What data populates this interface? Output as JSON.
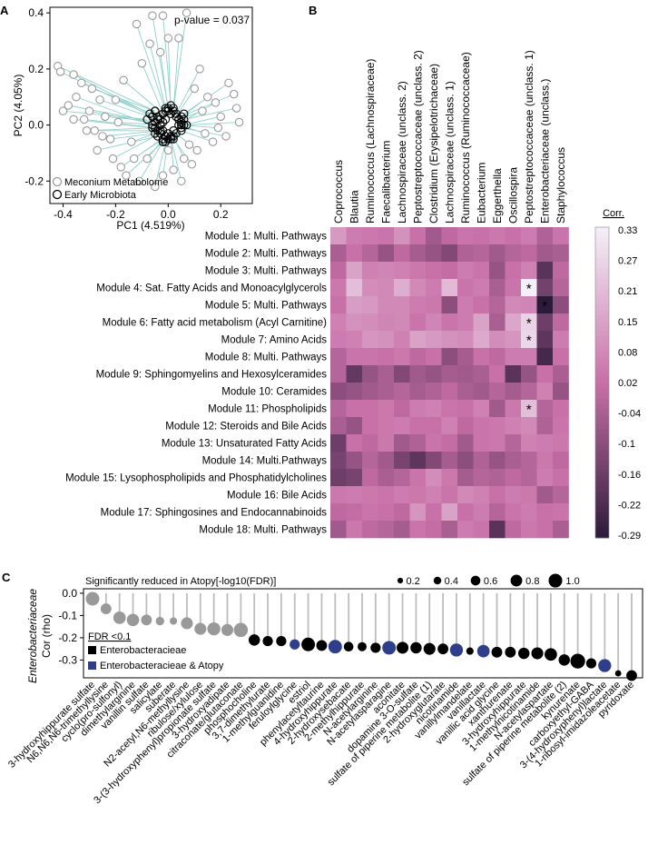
{
  "chart_data": [
    {
      "panel": "A",
      "type": "scatter",
      "annotation": "p-value = 0.037",
      "xlabel": "PC1 (4.519%)",
      "ylabel": "PC2 (4.05%)",
      "xlim": [
        -0.45,
        0.32
      ],
      "ylim": [
        -0.28,
        0.42
      ],
      "xticks": [
        "-0.4",
        "-0.2",
        "0.0",
        "0.2"
      ],
      "yticks": [
        "0.4",
        "0.2",
        "0.0",
        "-0.2"
      ],
      "xtick_values": [
        -0.4,
        -0.2,
        0.0,
        0.2
      ],
      "ytick_values": [
        0.4,
        0.2,
        0.0,
        -0.2
      ],
      "legend": [
        "Meconium Metabolome",
        "Early Microbiota"
      ],
      "colors": {
        "meconium": "#999999",
        "microbiota": "#000000",
        "link": "#8fd0cc"
      },
      "pairs": [
        [
          -0.42,
          0.21,
          -0.05,
          0.05
        ],
        [
          -0.41,
          0.19,
          -0.06,
          0.03
        ],
        [
          -0.36,
          0.18,
          -0.07,
          0.04
        ],
        [
          -0.38,
          0.07,
          -0.05,
          0.01
        ],
        [
          -0.4,
          0.05,
          -0.08,
          0.02
        ],
        [
          -0.35,
          0.1,
          -0.06,
          0.0
        ],
        [
          -0.32,
          0.02,
          -0.05,
          -0.01
        ],
        [
          -0.33,
          0.15,
          -0.04,
          0.03
        ],
        [
          -0.29,
          0.13,
          -0.05,
          0.05
        ],
        [
          -0.3,
          0.05,
          -0.03,
          0.0
        ],
        [
          -0.28,
          -0.02,
          -0.04,
          -0.02
        ],
        [
          -0.25,
          -0.04,
          -0.03,
          -0.02
        ],
        [
          -0.22,
          -0.05,
          -0.05,
          -0.03
        ],
        [
          -0.24,
          0.03,
          -0.02,
          0.01
        ],
        [
          -0.27,
          -0.09,
          -0.04,
          -0.04
        ],
        [
          -0.21,
          -0.12,
          -0.03,
          -0.03
        ],
        [
          -0.18,
          -0.15,
          -0.02,
          -0.05
        ],
        [
          -0.13,
          -0.12,
          -0.01,
          -0.04
        ],
        [
          -0.16,
          -0.18,
          -0.02,
          -0.06
        ],
        [
          -0.2,
          0.09,
          -0.03,
          0.02
        ],
        [
          -0.17,
          0.16,
          -0.02,
          0.04
        ],
        [
          -0.12,
          0.36,
          -0.01,
          0.05
        ],
        [
          -0.06,
          0.39,
          0.0,
          0.06
        ],
        [
          -0.02,
          0.39,
          0.01,
          0.07
        ],
        [
          -0.07,
          0.29,
          -0.01,
          0.06
        ],
        [
          -0.03,
          0.26,
          0.0,
          0.05
        ],
        [
          0.07,
          0.4,
          0.02,
          0.06
        ],
        [
          0.0,
          0.31,
          0.01,
          0.04
        ],
        [
          0.04,
          0.31,
          0.02,
          0.05
        ],
        [
          -0.1,
          0.22,
          -0.01,
          0.02
        ],
        [
          0.1,
          0.13,
          0.03,
          0.03
        ],
        [
          0.13,
          0.05,
          0.04,
          0.02
        ],
        [
          0.18,
          0.08,
          0.05,
          0.01
        ],
        [
          0.2,
          0.03,
          0.06,
          0.0
        ],
        [
          0.23,
          0.15,
          0.06,
          0.04
        ],
        [
          0.25,
          0.11,
          0.05,
          0.03
        ],
        [
          0.26,
          0.06,
          0.06,
          0.02
        ],
        [
          0.27,
          0.01,
          0.07,
          0.0
        ],
        [
          0.22,
          -0.04,
          0.05,
          -0.01
        ],
        [
          0.17,
          -0.06,
          0.05,
          -0.02
        ],
        [
          0.14,
          -0.03,
          0.04,
          0.0
        ],
        [
          0.11,
          -0.09,
          0.03,
          -0.03
        ],
        [
          0.09,
          -0.14,
          0.02,
          -0.05
        ],
        [
          0.06,
          -0.12,
          0.02,
          -0.04
        ],
        [
          0.05,
          -0.2,
          0.01,
          -0.05
        ],
        [
          0.02,
          -0.16,
          0.01,
          -0.04
        ],
        [
          -0.02,
          -0.18,
          0.0,
          -0.05
        ],
        [
          -0.05,
          -0.22,
          -0.01,
          -0.06
        ],
        [
          -0.08,
          -0.12,
          -0.01,
          -0.04
        ],
        [
          -0.11,
          -0.2,
          -0.02,
          -0.06
        ],
        [
          0.0,
          -0.09,
          0.0,
          -0.03
        ],
        [
          0.08,
          -0.07,
          0.02,
          -0.02
        ],
        [
          -0.36,
          0.02,
          -0.06,
          -0.01
        ],
        [
          -0.26,
          0.09,
          -0.04,
          0.02
        ],
        [
          0.15,
          0.1,
          0.04,
          0.02
        ],
        [
          -0.14,
          -0.06,
          -0.02,
          -0.02
        ],
        [
          0.19,
          -0.01,
          0.05,
          0.0
        ],
        [
          -0.31,
          -0.02,
          -0.05,
          -0.01
        ],
        [
          0.12,
          0.2,
          0.03,
          0.04
        ],
        [
          -0.19,
          0.01,
          -0.03,
          0.0
        ]
      ]
    },
    {
      "panel": "B",
      "type": "heatmap",
      "columns": [
        "Coprococcus",
        "Blautia",
        "Ruminococcus (Lachnospiraceae)",
        "Faecalibacterium",
        "Lachnospiraceae (unclass. 2)",
        "Peptostreptococcaceae (unclass. 2)",
        "Clostridium (Erysipelotrichaceae)",
        "Lachnospiraceae (unclass. 1)",
        "Ruminococcus (Ruminococcaceae)",
        "Eubacterium",
        "Eggerthella",
        "Oscillospira",
        "Peptostreptococcaceae (unclass. 1)",
        "Enterobacteriaceae (unclass.)",
        "Staphylococcus"
      ],
      "rows": [
        "Module 1: Multi. Pathways",
        "Module 2: Multi. Pathways",
        "Module 3: Multi. Pathways",
        "Module 4: Sat. Fatty Acids and Monoacylglycerols",
        "Module 5: Multi. Pathways",
        "Module 6: Fatty acid metabolism (Acyl Carnitine)",
        "Module 7: Amino Acids",
        "Module 8: Multi. Pathways",
        "Module 9: Sphingomyelins and Hexosylceramides",
        "Module 10: Ceramides",
        "Module 11: Phospholipids",
        "Module 12: Steroids and Bile Acids",
        "Module 13: Unsaturated Fatty Acids",
        "Module 14: Multi.Pathways",
        "Module 15: Lysophospholipids and Phosphatidylcholines",
        "Module 16: Bile Acids",
        "Module 17: Sphingosines and Endocannabinoids",
        "Module 18: Multi. Pathways"
      ],
      "values": [
        [
          0.12,
          0.05,
          0.04,
          0.03,
          0.1,
          0.02,
          -0.06,
          0.0,
          0.03,
          0.02,
          0.04,
          0.02,
          0.05,
          -0.03,
          0.03
        ],
        [
          -0.04,
          0.02,
          -0.02,
          -0.08,
          0.0,
          -0.05,
          -0.08,
          -0.12,
          -0.03,
          -0.02,
          -0.06,
          -0.02,
          0.0,
          -0.06,
          -0.04
        ],
        [
          0.0,
          0.14,
          0.06,
          0.07,
          0.06,
          0.04,
          0.02,
          0.01,
          0.05,
          0.03,
          -0.08,
          0.02,
          0.06,
          -0.2,
          0.0
        ],
        [
          0.04,
          0.21,
          0.09,
          0.08,
          0.17,
          0.08,
          0.05,
          0.2,
          0.03,
          0.05,
          -0.04,
          0.03,
          0.33,
          -0.15,
          -0.02
        ],
        [
          0.02,
          0.13,
          0.12,
          0.08,
          0.08,
          0.05,
          0.04,
          -0.1,
          0.05,
          0.02,
          -0.02,
          0.08,
          0.07,
          -0.29,
          -0.1
        ],
        [
          0.06,
          0.1,
          0.09,
          0.07,
          0.08,
          0.03,
          0.07,
          0.03,
          0.05,
          0.14,
          -0.04,
          0.15,
          0.26,
          -0.16,
          0.0
        ],
        [
          0.05,
          0.06,
          0.11,
          0.1,
          0.06,
          0.14,
          0.12,
          0.1,
          0.09,
          0.16,
          0.09,
          0.11,
          0.27,
          -0.19,
          0.05
        ],
        [
          -0.02,
          0.03,
          0.03,
          0.02,
          0.04,
          0.0,
          0.02,
          -0.1,
          -0.05,
          0.02,
          0.0,
          0.05,
          0.05,
          -0.24,
          0.02
        ],
        [
          -0.02,
          -0.18,
          -0.08,
          -0.04,
          -0.12,
          -0.06,
          -0.08,
          -0.05,
          -0.06,
          -0.04,
          0.02,
          -0.2,
          -0.08,
          0.02,
          -0.04
        ],
        [
          -0.1,
          -0.08,
          -0.06,
          -0.04,
          -0.02,
          -0.05,
          -0.03,
          0.0,
          -0.04,
          -0.06,
          -0.02,
          -0.05,
          -0.02,
          0.06,
          -0.08
        ],
        [
          -0.02,
          0.02,
          0.02,
          0.04,
          0.0,
          0.05,
          0.06,
          0.03,
          0.02,
          0.06,
          -0.06,
          0.04,
          0.21,
          -0.02,
          0.02
        ],
        [
          -0.04,
          -0.08,
          0.02,
          0.04,
          0.05,
          0.02,
          0.02,
          0.06,
          0.0,
          0.03,
          0.04,
          0.06,
          0.08,
          -0.03,
          0.03
        ],
        [
          -0.16,
          0.02,
          0.0,
          0.04,
          -0.06,
          -0.03,
          0.03,
          0.01,
          -0.06,
          0.03,
          0.04,
          -0.02,
          0.06,
          0.05,
          0.04
        ],
        [
          -0.14,
          -0.08,
          -0.02,
          -0.06,
          -0.14,
          -0.19,
          -0.12,
          -0.05,
          -0.1,
          -0.03,
          -0.08,
          -0.04,
          -0.02,
          0.04,
          0.0
        ],
        [
          -0.16,
          -0.14,
          0.0,
          -0.04,
          -0.02,
          0.03,
          0.09,
          0.04,
          -0.05,
          -0.02,
          -0.03,
          0.0,
          -0.02,
          0.05,
          0.02
        ],
        [
          0.04,
          0.05,
          0.04,
          0.03,
          0.05,
          0.04,
          0.06,
          0.03,
          0.08,
          0.06,
          0.02,
          0.05,
          0.04,
          -0.06,
          -0.02
        ],
        [
          0.0,
          0.01,
          0.03,
          0.02,
          0.0,
          0.11,
          0.02,
          0.14,
          0.02,
          0.05,
          -0.02,
          0.03,
          0.05,
          0.02,
          0.03
        ],
        [
          -0.06,
          0.04,
          0.0,
          -0.02,
          -0.05,
          0.03,
          0.01,
          -0.04,
          0.05,
          0.03,
          -0.2,
          0.0,
          0.04,
          0.02,
          -0.04
        ]
      ],
      "significant": [
        [
          3,
          12
        ],
        [
          4,
          13
        ],
        [
          5,
          12
        ],
        [
          6,
          12
        ],
        [
          10,
          12
        ]
      ],
      "colorbar_title": "Corr.",
      "colorbar_ticks": [
        "0.33",
        "0.27",
        "0.21",
        "0.15",
        "0.08",
        "0.02",
        "-0.04",
        "-0.1",
        "-0.16",
        "-0.22",
        "-0.29"
      ],
      "range": [
        -0.29,
        0.33
      ]
    },
    {
      "panel": "C",
      "type": "scatter",
      "title": "Significantly reduced in Atopy[-log10(FDR)]",
      "size_legend": [
        "0.2",
        "0.4",
        "0.6",
        "0.8",
        "1.0"
      ],
      "size_values": [
        0.2,
        0.4,
        0.6,
        0.8,
        1.0
      ],
      "ylabel_italic": "Enterobacteriaceae",
      "ylabel": "Cor (rho)",
      "ylim": [
        -0.38,
        0.02
      ],
      "yticks": [
        "0.0",
        "-0.1",
        "-0.2",
        "-0.3"
      ],
      "ytick_values": [
        0.0,
        -0.1,
        -0.2,
        -0.3
      ],
      "legend_title": "FDR <0.1",
      "legend": [
        "Enterobacteracieae",
        "Enterobacteracieae & Atopy"
      ],
      "colors": {
        "none": "#999999",
        "enterobacteriaceae": "#000000",
        "atopy": "#2e3e8a"
      },
      "categories": [
        "3-hydroxyhippurate sulfate",
        "N6,N6,N6-trimethyllysine",
        "cyclo(pro-sulfonyl)",
        "dimethylarginine",
        "vanillin sulfate",
        "salicylate",
        "suberate",
        "N2-acetyl,N6-methyllysine",
        "ribulose/xylulose",
        "3-(3-hydroxyphenyl)propionate sulfate",
        "3-hydroxyadipate",
        "citraconate/glutaconate",
        "phosphocholine",
        "3,7-dimethylurate",
        "1-methylguanidine",
        "feruloylglycine",
        "estriol",
        "phenylacetyltaurine",
        "4-hydroxyhippurate",
        "2-hydroxysebacate",
        "2-methylhippurate",
        "N-acetylarginine",
        "N-acetylasparagine",
        "aconitate",
        "dopamine 3-O-sulfate",
        "sulfate of piperine metabolite (1)",
        "2-hydroxyglutarate",
        "nicotinamide",
        "vanillylmandelate",
        "vanillactate",
        "vanillic acid glycine",
        "xanthurenate",
        "3-hydroxyhippurate",
        "1-methylnicotinamide",
        "N-acetylaspartate",
        "sulfate of piperine metabolite (2)",
        "kynurenate",
        "carboxyethyl-GABA",
        "3-(4-hydroxyphenyl)lactate",
        "1-ribosyl-imidazoleacetate",
        "pyridoxate"
      ],
      "values": [
        -0.025,
        -0.07,
        -0.11,
        -0.12,
        -0.12,
        -0.125,
        -0.125,
        -0.135,
        -0.16,
        -0.16,
        -0.165,
        -0.165,
        -0.21,
        -0.215,
        -0.215,
        -0.23,
        -0.23,
        -0.235,
        -0.24,
        -0.24,
        -0.24,
        -0.245,
        -0.245,
        -0.245,
        -0.245,
        -0.25,
        -0.25,
        -0.255,
        -0.26,
        -0.26,
        -0.265,
        -0.265,
        -0.27,
        -0.27,
        -0.275,
        -0.3,
        -0.305,
        -0.315,
        -0.325,
        -0.36,
        -0.37
      ],
      "fdr_size": [
        0.85,
        0.6,
        0.75,
        0.75,
        0.6,
        0.4,
        0.3,
        0.7,
        0.7,
        0.8,
        0.7,
        0.9,
        0.65,
        0.55,
        0.55,
        0.55,
        0.85,
        0.6,
        0.85,
        0.5,
        0.45,
        0.55,
        0.85,
        0.7,
        0.65,
        0.7,
        0.6,
        0.8,
        0.3,
        0.75,
        0.6,
        0.6,
        0.65,
        0.7,
        0.75,
        0.65,
        0.95,
        0.55,
        0.8,
        0.2,
        0.6
      ],
      "group": [
        "n",
        "n",
        "n",
        "n",
        "n",
        "n",
        "n",
        "n",
        "n",
        "n",
        "n",
        "n",
        "e",
        "e",
        "e",
        "a",
        "e",
        "e",
        "a",
        "e",
        "e",
        "e",
        "a",
        "e",
        "e",
        "e",
        "e",
        "a",
        "e",
        "a",
        "e",
        "e",
        "e",
        "e",
        "e",
        "e",
        "e",
        "e",
        "a",
        "e",
        "e"
      ]
    }
  ]
}
